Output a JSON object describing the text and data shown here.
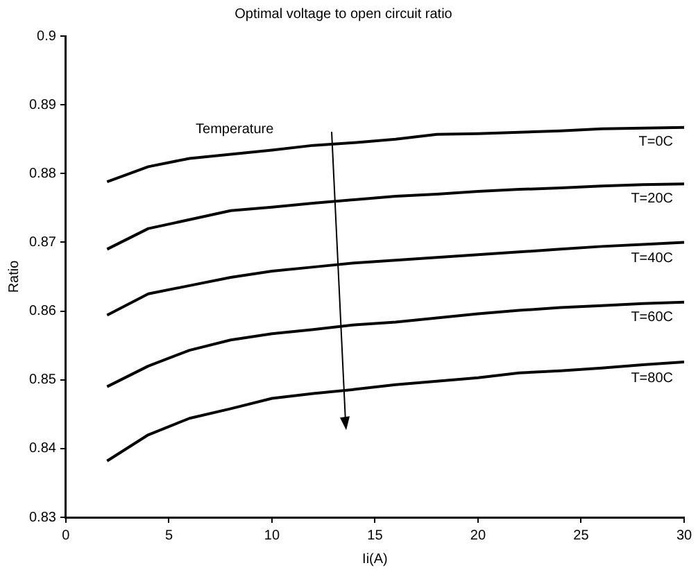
{
  "chart_data": {
    "type": "line",
    "title": "Optimal voltage to open circuit ratio",
    "xlabel": "Ii(A)",
    "ylabel": "Ratio",
    "x": [
      2,
      4,
      6,
      8,
      10,
      12,
      14,
      16,
      18,
      20,
      22,
      24,
      26,
      28,
      30
    ],
    "series": [
      {
        "name": "T=0C",
        "color": "#000000",
        "values": [
          0.8788,
          0.881,
          0.8822,
          0.8828,
          0.8834,
          0.8841,
          0.8845,
          0.885,
          0.8857,
          0.8858,
          0.886,
          0.8862,
          0.8865,
          0.8866,
          0.8867
        ]
      },
      {
        "name": "T=20C",
        "color": "#000000",
        "values": [
          0.869,
          0.872,
          0.8733,
          0.8746,
          0.8751,
          0.8757,
          0.8762,
          0.8767,
          0.877,
          0.8774,
          0.8777,
          0.8779,
          0.8782,
          0.8784,
          0.8785
        ]
      },
      {
        "name": "T=40C",
        "color": "#000000",
        "values": [
          0.8594,
          0.8625,
          0.8637,
          0.8649,
          0.8658,
          0.8664,
          0.867,
          0.8674,
          0.8678,
          0.8682,
          0.8686,
          0.869,
          0.8694,
          0.8697,
          0.87
        ]
      },
      {
        "name": "T=60C",
        "color": "#000000",
        "values": [
          0.849,
          0.852,
          0.8543,
          0.8558,
          0.8567,
          0.8573,
          0.858,
          0.8584,
          0.859,
          0.8596,
          0.8601,
          0.8605,
          0.8608,
          0.8611,
          0.8613
        ]
      },
      {
        "name": "T=80C",
        "color": "#000000",
        "values": [
          0.8382,
          0.842,
          0.8444,
          0.8458,
          0.8473,
          0.848,
          0.8486,
          0.8493,
          0.8498,
          0.8503,
          0.851,
          0.8513,
          0.8517,
          0.8522,
          0.8526
        ]
      }
    ],
    "annotations": [
      "Temperature"
    ],
    "xlim": [
      0,
      30
    ],
    "xticks": [
      0,
      5,
      10,
      15,
      20,
      25,
      30
    ],
    "ylim": [
      0.83,
      0.9
    ],
    "yticks": [
      0.83,
      0.84,
      0.85,
      0.86,
      0.87,
      0.88,
      0.89,
      0.9
    ],
    "grid": false,
    "legend": false,
    "marker": "none",
    "line_style": "solid"
  }
}
